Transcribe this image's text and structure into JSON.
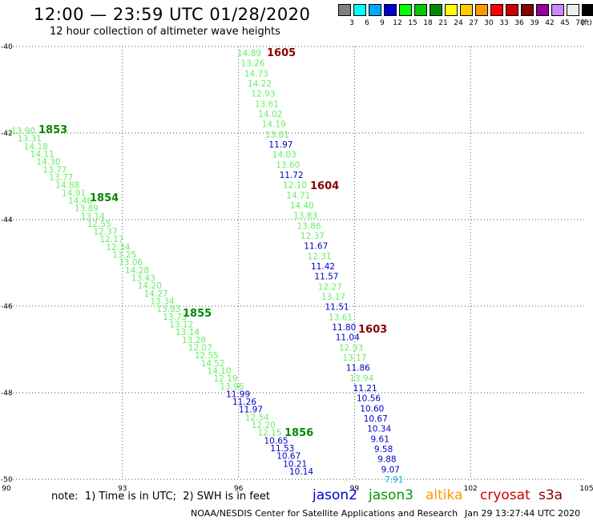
{
  "header": {
    "title": "12:00 — 23:59 UTC 01/28/2020",
    "subtitle": "12 hour collection of altimeter wave heights"
  },
  "legend": {
    "unit": "(ft)",
    "bins": [
      {
        "label": "3",
        "color": "#808080"
      },
      {
        "label": "6",
        "color": "#00ffff"
      },
      {
        "label": "9",
        "color": "#00aaff"
      },
      {
        "label": "12",
        "color": "#0000cc"
      },
      {
        "label": "15",
        "color": "#00ff00"
      },
      {
        "label": "18",
        "color": "#00cc00"
      },
      {
        "label": "21",
        "color": "#008800"
      },
      {
        "label": "24",
        "color": "#ffff00"
      },
      {
        "label": "27",
        "color": "#ffcc00"
      },
      {
        "label": "30",
        "color": "#ff9900"
      },
      {
        "label": "33",
        "color": "#ff0000"
      },
      {
        "label": "36",
        "color": "#cc0000"
      },
      {
        "label": "39",
        "color": "#880000"
      },
      {
        "label": "42",
        "color": "#990099"
      },
      {
        "label": "45",
        "color": "#cc88ff"
      },
      {
        "label": "70",
        "color": "#eeeeee"
      },
      {
        "label": "",
        "color": "#000000"
      }
    ]
  },
  "axes": {
    "lon_ticks": [
      "90",
      "93",
      "96",
      "99",
      "102",
      "105"
    ],
    "lat_ticks": [
      "-40",
      "-42",
      "-44",
      "-46",
      "-48",
      "-50"
    ]
  },
  "colors": {
    "light_green": "#66ee66",
    "blue": "#0000cc",
    "cyan": "#00aadd",
    "dark_green": "#008800",
    "dark_red": "#880000"
  },
  "tracks": {
    "track_1853": [
      {
        "text": "13.90",
        "c": "light_green"
      },
      {
        "text": "13.31",
        "c": "light_green"
      },
      {
        "text": "14.18",
        "c": "light_green"
      },
      {
        "text": "14.11",
        "c": "light_green"
      },
      {
        "text": "14.30",
        "c": "light_green"
      },
      {
        "text": "13.77",
        "c": "light_green"
      },
      {
        "text": "13.77",
        "c": "light_green"
      },
      {
        "text": "14.88",
        "c": "light_green"
      },
      {
        "text": "14.91",
        "c": "light_green"
      },
      {
        "text": "14.46",
        "c": "light_green"
      },
      {
        "text": "13.89",
        "c": "light_green"
      },
      {
        "text": "13.14",
        "c": "light_green"
      },
      {
        "text": "12.55",
        "c": "light_green"
      },
      {
        "text": "12.37",
        "c": "light_green"
      },
      {
        "text": "12.17",
        "c": "light_green"
      },
      {
        "text": "12.34",
        "c": "light_green"
      },
      {
        "text": "13.25",
        "c": "light_green"
      },
      {
        "text": "13.06",
        "c": "light_green"
      },
      {
        "text": "14.28",
        "c": "light_green"
      },
      {
        "text": "13.43",
        "c": "light_green"
      },
      {
        "text": "14.20",
        "c": "light_green"
      },
      {
        "text": "14.27",
        "c": "light_green"
      },
      {
        "text": "13.34",
        "c": "light_green"
      },
      {
        "text": "13.83",
        "c": "light_green"
      },
      {
        "text": "13.73",
        "c": "light_green"
      },
      {
        "text": "13.12",
        "c": "light_green"
      },
      {
        "text": "13.14",
        "c": "light_green"
      },
      {
        "text": "13.28",
        "c": "light_green"
      },
      {
        "text": "12.07",
        "c": "light_green"
      },
      {
        "text": "12.55",
        "c": "light_green"
      },
      {
        "text": "14.52",
        "c": "light_green"
      },
      {
        "text": "14.10",
        "c": "light_green"
      },
      {
        "text": "12.19",
        "c": "light_green"
      },
      {
        "text": "13.96",
        "c": "light_green"
      },
      {
        "text": "11.99",
        "c": "blue"
      },
      {
        "text": "11.26",
        "c": "blue"
      },
      {
        "text": "11.97",
        "c": "blue"
      },
      {
        "text": "12.54",
        "c": "light_green"
      },
      {
        "text": "12.20",
        "c": "light_green"
      },
      {
        "text": "12.15",
        "c": "light_green"
      },
      {
        "text": "10.65",
        "c": "blue"
      },
      {
        "text": "11.53",
        "c": "blue"
      },
      {
        "text": "10.67",
        "c": "blue"
      },
      {
        "text": "10.21",
        "c": "blue"
      },
      {
        "text": "10.14",
        "c": "blue"
      }
    ],
    "track_1605": [
      {
        "text": "14.89",
        "c": "light_green"
      },
      {
        "text": "13.26",
        "c": "light_green"
      },
      {
        "text": "14.73",
        "c": "light_green"
      },
      {
        "text": "14.22",
        "c": "light_green"
      },
      {
        "text": "12.93",
        "c": "light_green"
      },
      {
        "text": "13.61",
        "c": "light_green"
      },
      {
        "text": "14.02",
        "c": "light_green"
      },
      {
        "text": "14.19",
        "c": "light_green"
      },
      {
        "text": "13.81",
        "c": "light_green"
      },
      {
        "text": "11.97",
        "c": "blue"
      },
      {
        "text": "14.03",
        "c": "light_green"
      },
      {
        "text": "13.60",
        "c": "light_green"
      },
      {
        "text": "11.72",
        "c": "blue"
      },
      {
        "text": "12.10",
        "c": "light_green"
      },
      {
        "text": "14.71",
        "c": "light_green"
      },
      {
        "text": "14.40",
        "c": "light_green"
      },
      {
        "text": "13.83",
        "c": "light_green"
      },
      {
        "text": "13.86",
        "c": "light_green"
      },
      {
        "text": "12.37",
        "c": "light_green"
      },
      {
        "text": "11.67",
        "c": "blue"
      },
      {
        "text": "12.31",
        "c": "light_green"
      },
      {
        "text": "11.42",
        "c": "blue"
      },
      {
        "text": "11.57",
        "c": "blue"
      },
      {
        "text": "12.27",
        "c": "light_green"
      },
      {
        "text": "13.17",
        "c": "light_green"
      },
      {
        "text": "11.51",
        "c": "blue"
      },
      {
        "text": "13.61",
        "c": "light_green"
      },
      {
        "text": "11.80",
        "c": "blue"
      },
      {
        "text": "11.04",
        "c": "blue"
      },
      {
        "text": "12.93",
        "c": "light_green"
      },
      {
        "text": "13.17",
        "c": "light_green"
      },
      {
        "text": "11.86",
        "c": "blue"
      },
      {
        "text": "13.94",
        "c": "light_green"
      },
      {
        "text": "11.21",
        "c": "blue"
      },
      {
        "text": "10.56",
        "c": "blue"
      },
      {
        "text": "10.60",
        "c": "blue"
      },
      {
        "text": "10.67",
        "c": "blue"
      },
      {
        "text": "10.34",
        "c": "blue"
      },
      {
        "text": "9.61",
        "c": "blue"
      },
      {
        "text": "9.58",
        "c": "blue"
      },
      {
        "text": "9.88",
        "c": "blue"
      },
      {
        "text": "9.07",
        "c": "blue"
      },
      {
        "text": "7.91",
        "c": "cyan"
      }
    ]
  },
  "time_labels": [
    {
      "text": "1853",
      "c": "dark_green"
    },
    {
      "text": "1854",
      "c": "dark_green"
    },
    {
      "text": "1855",
      "c": "dark_green"
    },
    {
      "text": "1856",
      "c": "dark_green"
    },
    {
      "text": "1605",
      "c": "dark_red"
    },
    {
      "text": "1604",
      "c": "dark_red"
    },
    {
      "text": "1603",
      "c": "dark_red"
    }
  ],
  "footer": {
    "note": "note:  1) Time is in UTC;  2) SWH is in feet",
    "satellites": [
      {
        "name": "jason2",
        "color": "#0000cc"
      },
      {
        "name": "jason3",
        "color": "#009900"
      },
      {
        "name": "altika",
        "color": "#ff9900"
      },
      {
        "name": "cryosat",
        "color": "#cc0000"
      },
      {
        "name": "s3a",
        "color": "#880000"
      }
    ],
    "credit": "NOAA/NESDIS Center for Satellite Applications and Research",
    "timestamp": "Jan 29 13:27:44 UTC 2020"
  }
}
